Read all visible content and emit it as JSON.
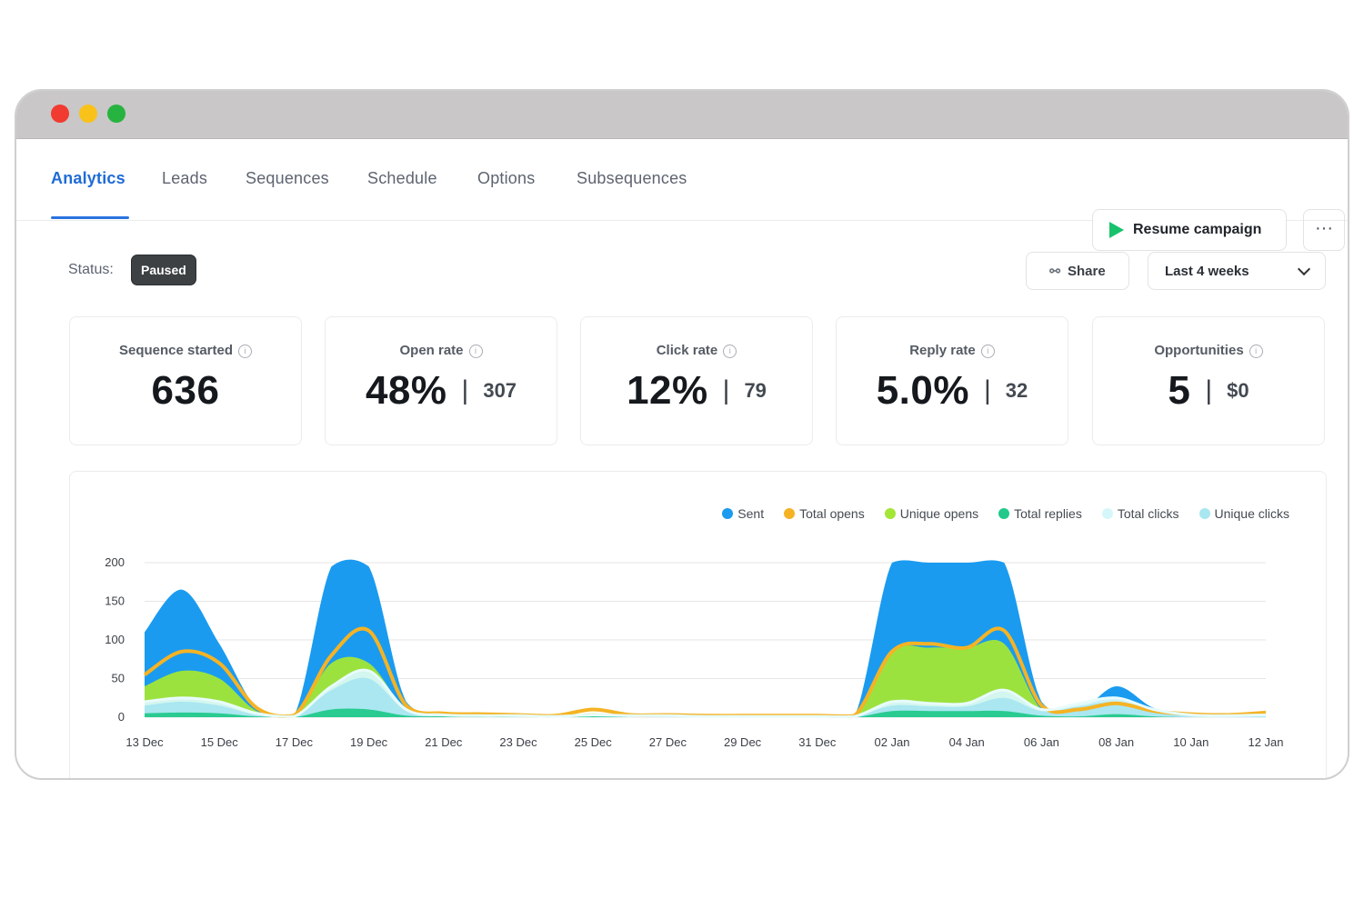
{
  "window": {
    "controls": [
      "close",
      "minimize",
      "maximize"
    ]
  },
  "tabs": [
    {
      "label": "Analytics",
      "active": true
    },
    {
      "label": "Leads",
      "active": false
    },
    {
      "label": "Sequences",
      "active": false
    },
    {
      "label": "Schedule",
      "active": false
    },
    {
      "label": "Options",
      "active": false
    },
    {
      "label": "Subsequences",
      "active": false
    }
  ],
  "header": {
    "resume_label": "Resume campaign",
    "more_label": "···"
  },
  "status": {
    "label": "Status:",
    "value": "Paused"
  },
  "toolbar": {
    "share_label": "Share",
    "range_value": "Last 4 weeks"
  },
  "metrics": [
    {
      "title": "Sequence started",
      "value": "636",
      "secondary": ""
    },
    {
      "title": "Open rate",
      "value": "48%",
      "secondary": "307"
    },
    {
      "title": "Click rate",
      "value": "12%",
      "secondary": "79"
    },
    {
      "title": "Reply rate",
      "value": "5.0%",
      "secondary": "32"
    },
    {
      "title": "Opportunities",
      "value": "5",
      "secondary": "$0"
    }
  ],
  "colors": {
    "accent": "#2a73e0",
    "resume_icon": "#17c26b",
    "status_badge": "#3d4143"
  },
  "chart_data": {
    "type": "area",
    "x": [
      "13 Dec",
      "14 Dec",
      "15 Dec",
      "16 Dec",
      "17 Dec",
      "18 Dec",
      "19 Dec",
      "20 Dec",
      "21 Dec",
      "22 Dec",
      "23 Dec",
      "24 Dec",
      "25 Dec",
      "26 Dec",
      "27 Dec",
      "28 Dec",
      "29 Dec",
      "30 Dec",
      "31 Dec",
      "01 Jan",
      "02 Jan",
      "03 Jan",
      "04 Jan",
      "05 Jan",
      "06 Jan",
      "07 Jan",
      "08 Jan",
      "09 Jan",
      "10 Jan",
      "11 Jan",
      "12 Jan"
    ],
    "tick_labels": [
      "13 Dec",
      "15 Dec",
      "17 Dec",
      "19 Dec",
      "21 Dec",
      "23 Dec",
      "25 Dec",
      "27 Dec",
      "29 Dec",
      "31 Dec",
      "02 Jan",
      "04 Jan",
      "06 Jan",
      "08 Jan",
      "10 Jan",
      "12 Jan"
    ],
    "yticks": [
      0,
      50,
      100,
      150,
      200
    ],
    "ylim": [
      0,
      200
    ],
    "grid": true,
    "legend_position": "top-right",
    "series": [
      {
        "name": "Sent",
        "color": "#1a9bf0",
        "values": [
          110,
          165,
          95,
          12,
          2,
          195,
          195,
          20,
          5,
          3,
          2,
          2,
          3,
          2,
          2,
          2,
          2,
          2,
          2,
          2,
          200,
          200,
          200,
          200,
          20,
          8,
          40,
          12,
          5,
          3,
          5
        ]
      },
      {
        "name": "Total opens",
        "color": "#f5b324",
        "values": [
          55,
          85,
          70,
          12,
          2,
          80,
          112,
          15,
          5,
          4,
          3,
          2,
          10,
          3,
          3,
          2,
          2,
          2,
          2,
          2,
          85,
          95,
          90,
          112,
          15,
          10,
          18,
          8,
          4,
          3,
          6
        ]
      },
      {
        "name": "Unique opens",
        "color": "#a3e635",
        "values": [
          40,
          60,
          50,
          8,
          1,
          70,
          70,
          10,
          3,
          2,
          2,
          1,
          5,
          2,
          2,
          1,
          1,
          1,
          1,
          1,
          85,
          90,
          90,
          95,
          10,
          6,
          12,
          5,
          2,
          2,
          3
        ]
      },
      {
        "name": "Total replies",
        "color": "#22c98a",
        "values": [
          5,
          6,
          5,
          1,
          0,
          10,
          10,
          2,
          1,
          1,
          0,
          0,
          1,
          0,
          0,
          0,
          0,
          0,
          0,
          0,
          8,
          8,
          8,
          8,
          2,
          1,
          4,
          1,
          0,
          0,
          0
        ]
      },
      {
        "name": "Total clicks",
        "color": "#d6f7f9",
        "values": [
          20,
          25,
          20,
          5,
          1,
          40,
          60,
          10,
          3,
          2,
          2,
          1,
          3,
          2,
          2,
          1,
          1,
          1,
          1,
          1,
          20,
          18,
          18,
          35,
          10,
          18,
          25,
          10,
          3,
          2,
          3
        ]
      },
      {
        "name": "Unique clicks",
        "color": "#a8e6f0",
        "values": [
          15,
          20,
          15,
          3,
          1,
          35,
          50,
          8,
          2,
          1,
          1,
          1,
          2,
          1,
          1,
          1,
          1,
          1,
          1,
          1,
          15,
          14,
          14,
          25,
          8,
          14,
          20,
          8,
          2,
          1,
          2
        ]
      }
    ]
  }
}
